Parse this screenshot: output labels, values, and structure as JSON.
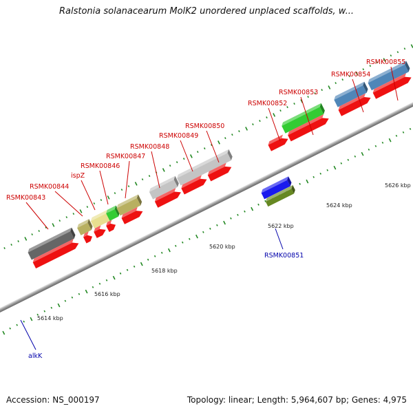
{
  "title": "Ralstonia solanacearum MolK2 unordered unplaced scaffolds, w...",
  "footer": {
    "accession": "Accession: NS_000197",
    "summary": "Topology: linear; Length: 5,964,607 bp; Genes: 4,975"
  },
  "ruler_ticks": [
    "5614 kbp",
    "5616 kbp",
    "5618 kbp",
    "5620 kbp",
    "5622 kbp",
    "5624 kbp",
    "5626 kbp"
  ],
  "gene_labels": [
    {
      "name": "RSMK00843",
      "color": "#cc0000"
    },
    {
      "name": "RSMK00844",
      "color": "#cc0000"
    },
    {
      "name": "ispZ",
      "color": "#cc0000"
    },
    {
      "name": "RSMK00846",
      "color": "#cc0000"
    },
    {
      "name": "RSMK00847",
      "color": "#cc0000"
    },
    {
      "name": "RSMK00848",
      "color": "#cc0000"
    },
    {
      "name": "RSMK00849",
      "color": "#cc0000"
    },
    {
      "name": "RSMK00850",
      "color": "#cc0000"
    },
    {
      "name": "RSMK00852",
      "color": "#cc0000"
    },
    {
      "name": "RSMK00853",
      "color": "#cc0000"
    },
    {
      "name": "RSMK00854",
      "color": "#cc0000"
    },
    {
      "name": "RSMK00855",
      "color": "#cc0000"
    },
    {
      "name": "RSMK00851",
      "color": "#0000aa"
    },
    {
      "name": "alkK",
      "color": "#0000aa"
    }
  ],
  "colors": {
    "cds_red": "#ee1111",
    "backbone": "#9a9a9a",
    "forward_strand": "#1a1aee",
    "reverse_strand_dark": "#0a0a55",
    "reverse_strand_light": "#7766dd",
    "tick_green": "#228822",
    "tan": "#b8b060",
    "light_yellow": "#e8e090",
    "green": "#33cc33",
    "olive": "#668822",
    "silver": "#c4c4c4",
    "dark_gray": "#666666",
    "steel_blue": "#4f86b8"
  }
}
